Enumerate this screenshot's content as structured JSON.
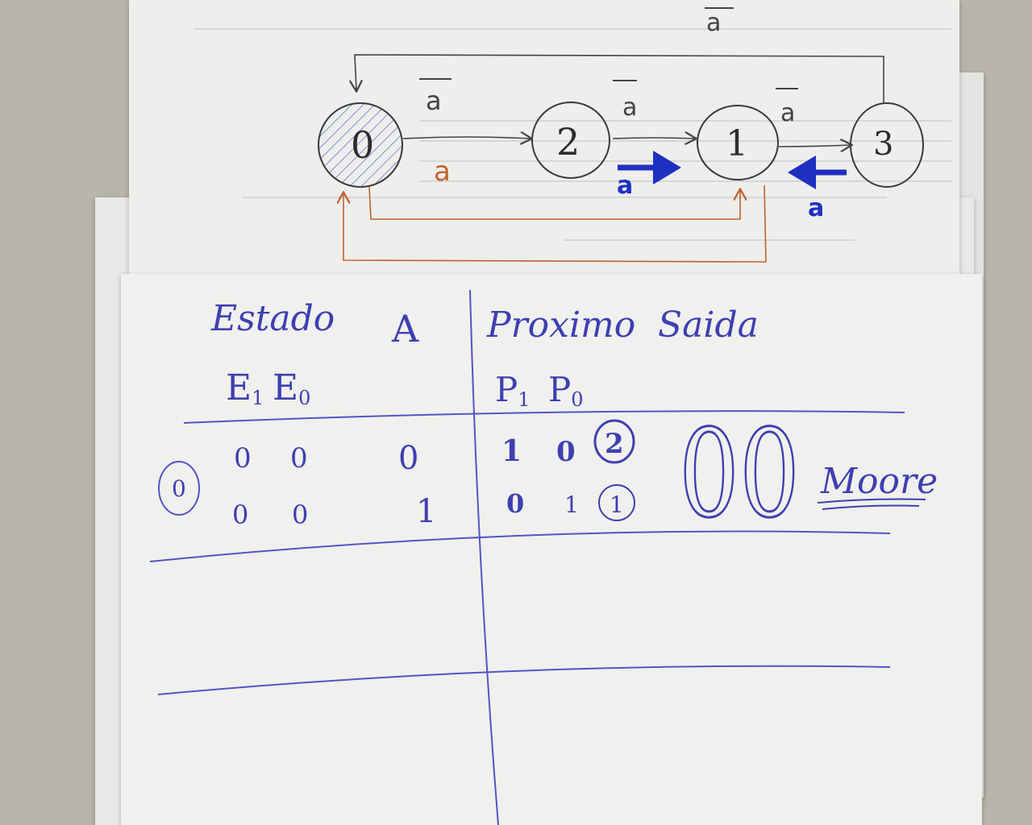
{
  "diagram": {
    "states": [
      {
        "id": "s0",
        "label": "0"
      },
      {
        "id": "s2",
        "label": "2"
      },
      {
        "id": "s1",
        "label": "1"
      },
      {
        "id": "s3",
        "label": "3"
      }
    ],
    "edges": [
      {
        "from": "0",
        "to": "2",
        "label_top": "a",
        "label_bottom": "a"
      },
      {
        "from": "2",
        "to": "1",
        "label": "a",
        "bold_label": "a"
      },
      {
        "from": "1",
        "to": "3",
        "label": "a",
        "bold_label": "a"
      },
      {
        "from": "3",
        "to": "0",
        "label": "a"
      }
    ]
  },
  "table": {
    "headers": {
      "estado": "Estado",
      "a": "A",
      "proximo": "Proximo",
      "saida": "Saida",
      "e_sub": "E",
      "e1": "1",
      "e0": "0",
      "p_sub": "P",
      "p1": "1",
      "p0": "0"
    },
    "state_label": "0",
    "rows": [
      {
        "e1": "0",
        "e0": "0",
        "a": "0",
        "p1": "1",
        "p0": "0",
        "saida": "2"
      },
      {
        "e1": "0",
        "e0": "0",
        "a": "1",
        "p1": "0",
        "p0": "1",
        "saida": "1"
      }
    ],
    "output": "00",
    "machine_type": "Moore"
  }
}
